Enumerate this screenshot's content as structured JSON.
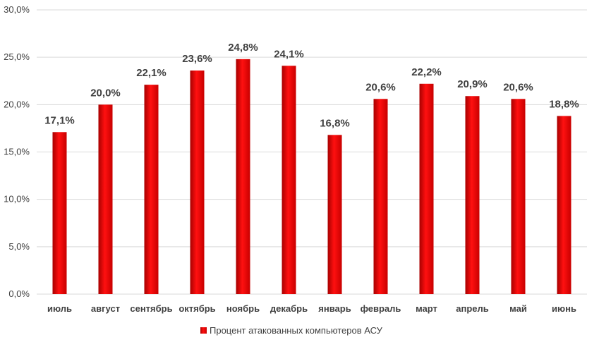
{
  "chart_data": {
    "type": "bar",
    "categories": [
      "июль",
      "август",
      "сентябрь",
      "октябрь",
      "ноябрь",
      "декабрь",
      "январь",
      "февраль",
      "март",
      "апрель",
      "май",
      "июнь"
    ],
    "series": [
      {
        "name": "Процент атакованных компьютеров АСУ",
        "values": [
          17.1,
          20.0,
          22.1,
          23.6,
          24.8,
          24.1,
          16.8,
          20.6,
          22.2,
          20.9,
          20.6,
          18.8
        ],
        "data_labels": [
          "17,1%",
          "20,0%",
          "22,1%",
          "23,6%",
          "24,8%",
          "24,1%",
          "16,8%",
          "20,6%",
          "22,2%",
          "20,9%",
          "20,6%",
          "18,8%"
        ],
        "color": "#e00000"
      }
    ],
    "ylim": [
      0,
      30
    ],
    "y_ticks": [
      0,
      5,
      10,
      15,
      20,
      25,
      30
    ],
    "y_tick_labels": [
      "0,0%",
      "5,0%",
      "10,0%",
      "15,0%",
      "20,0%",
      "25,0%",
      "30,0%"
    ],
    "grid": true,
    "legend_position": "bottom",
    "colors": {
      "bar_dark": "#b30000",
      "bar_light": "#ff1a1a",
      "grid": "#d9d9d9",
      "text": "#404040"
    }
  }
}
